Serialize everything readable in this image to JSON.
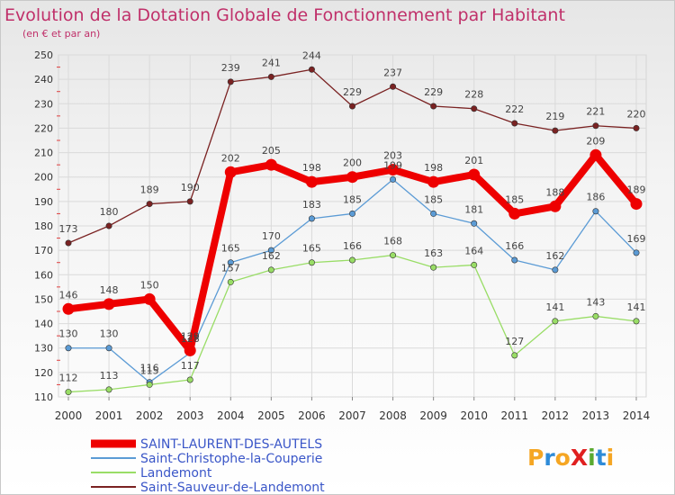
{
  "chart_data": {
    "type": "line",
    "title": "Evolution de la Dotation Globale de Fonctionnement par Habitant",
    "subtitle": "(en € et par an)",
    "xlabel": "",
    "ylabel": "",
    "ylim": [
      110,
      250
    ],
    "categories": [
      "2000",
      "2001",
      "2002",
      "2003",
      "2004",
      "2005",
      "2006",
      "2007",
      "2008",
      "2009",
      "2010",
      "2011",
      "2012",
      "2013",
      "2014"
    ],
    "yticks": [
      110,
      120,
      130,
      140,
      150,
      160,
      170,
      180,
      190,
      200,
      210,
      220,
      230,
      240,
      250
    ],
    "series": [
      {
        "name": "SAINT-LAURENT-DES-AUTELS",
        "color": "#ee0000",
        "values": [
          146,
          148,
          150,
          129,
          202,
          205,
          198,
          200,
          203,
          198,
          201,
          185,
          188,
          209,
          189
        ]
      },
      {
        "name": "Saint-Christophe-la-Couperie",
        "color": "#5b9bd5",
        "values": [
          130,
          130,
          116,
          128,
          165,
          170,
          183,
          185,
          199,
          185,
          181,
          166,
          162,
          186,
          169
        ]
      },
      {
        "name": "Landemont",
        "color": "#99dd66",
        "values": [
          112,
          113,
          115,
          117,
          157,
          162,
          165,
          166,
          168,
          163,
          164,
          127,
          141,
          143,
          141
        ]
      },
      {
        "name": "Saint-Sauveur-de-Landemont",
        "color": "#7a2222",
        "values": [
          173,
          180,
          189,
          190,
          239,
          241,
          244,
          229,
          237,
          229,
          228,
          222,
          219,
          221,
          220
        ]
      }
    ]
  },
  "branding": {
    "logo_text": "ProXiti"
  }
}
